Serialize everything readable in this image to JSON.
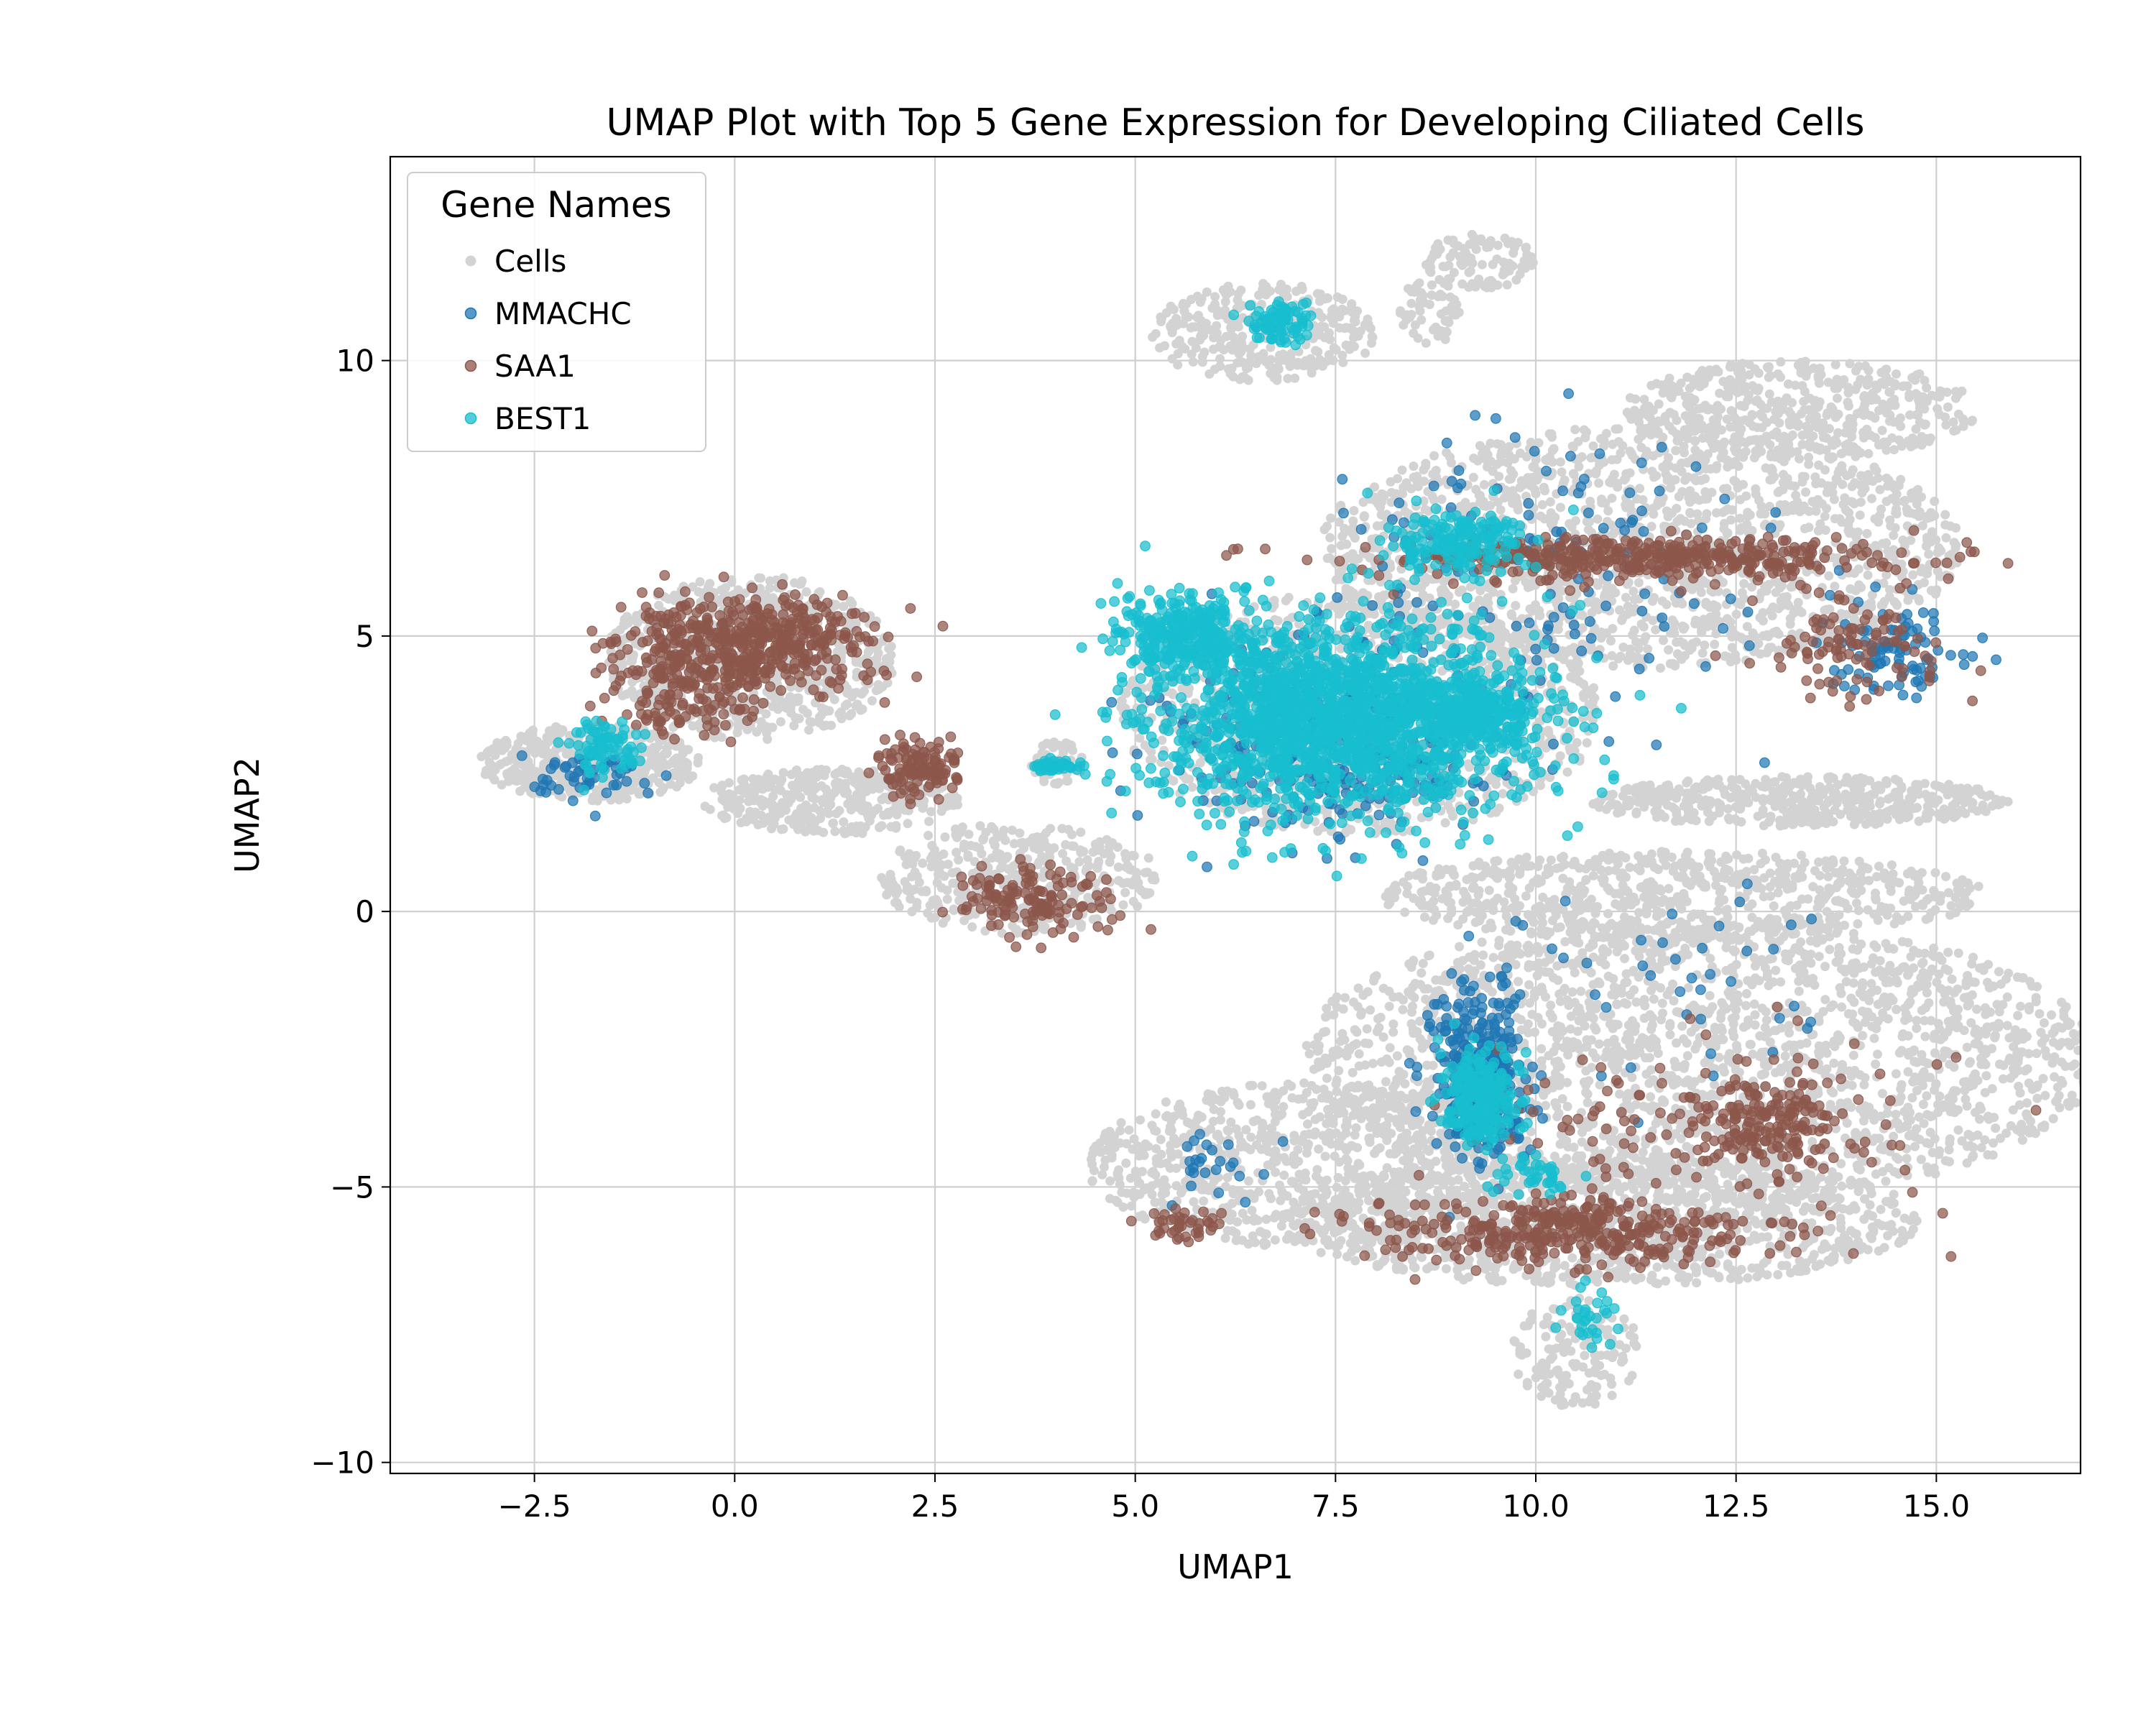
{
  "chart_data": {
    "type": "scatter",
    "title": "UMAP Plot with Top 5 Gene Expression for Developing Ciliated Cells",
    "xlabel": "UMAP1",
    "ylabel": "UMAP2",
    "xlim": [
      -4.3,
      16.8
    ],
    "ylim": [
      -10.2,
      13.7
    ],
    "xticks": [
      -2.5,
      0.0,
      2.5,
      5.0,
      7.5,
      10.0,
      12.5,
      15.0
    ],
    "xtick_labels": [
      "−2.5",
      "0.0",
      "2.5",
      "5.0",
      "7.5",
      "10.0",
      "12.5",
      "15.0"
    ],
    "yticks": [
      -10,
      -5,
      0,
      5,
      10
    ],
    "ytick_labels": [
      "−10",
      "−5",
      "0",
      "5",
      "10"
    ],
    "grid": true,
    "legend": {
      "title": "Gene Names",
      "position": "top-left"
    },
    "series": [
      {
        "name": "Cells",
        "color": "#d3d3d3",
        "regions": [
          {
            "cx": -1.8,
            "cy": 2.7,
            "rx": 1.4,
            "ry": 0.7,
            "n": 400
          },
          {
            "cx": 0.2,
            "cy": 4.6,
            "rx": 1.8,
            "ry": 1.5,
            "n": 700
          },
          {
            "cx": 1.2,
            "cy": 2.0,
            "rx": 1.6,
            "ry": 0.6,
            "n": 350
          },
          {
            "cx": 3.5,
            "cy": 0.6,
            "rx": 1.8,
            "ry": 1.0,
            "n": 400
          },
          {
            "cx": 4.0,
            "cy": 2.7,
            "rx": 0.35,
            "ry": 0.4,
            "n": 60
          },
          {
            "cx": 6.6,
            "cy": 10.5,
            "rx": 1.4,
            "ry": 0.9,
            "n": 300
          },
          {
            "cx": 9.3,
            "cy": 11.8,
            "rx": 0.7,
            "ry": 0.5,
            "n": 100
          },
          {
            "cx": 8.7,
            "cy": 10.9,
            "rx": 0.4,
            "ry": 0.6,
            "n": 60
          },
          {
            "cx": 11.3,
            "cy": 6.6,
            "rx": 4.0,
            "ry": 2.2,
            "n": 1700
          },
          {
            "cx": 13.3,
            "cy": 9.1,
            "rx": 2.2,
            "ry": 0.9,
            "n": 500
          },
          {
            "cx": 7.8,
            "cy": 3.6,
            "rx": 3.0,
            "ry": 2.2,
            "n": 1100
          },
          {
            "cx": 13.3,
            "cy": 2.0,
            "rx": 2.6,
            "ry": 0.45,
            "n": 500
          },
          {
            "cx": 11.8,
            "cy": 0.3,
            "rx": 3.8,
            "ry": 0.8,
            "n": 700
          },
          {
            "cx": 12.0,
            "cy": -2.7,
            "rx": 5.0,
            "ry": 2.6,
            "n": 2200
          },
          {
            "cx": 7.2,
            "cy": -4.6,
            "rx": 2.8,
            "ry": 1.5,
            "n": 800
          },
          {
            "cx": 10.8,
            "cy": -5.6,
            "rx": 4.0,
            "ry": 1.2,
            "n": 1100
          },
          {
            "cx": 10.5,
            "cy": -8.0,
            "rx": 0.8,
            "ry": 1.0,
            "n": 150
          }
        ]
      },
      {
        "name": "MMACHC",
        "color": "#1f77b4",
        "regions": [
          {
            "cx": -2.0,
            "cy": 2.4,
            "rx": 0.8,
            "ry": 0.5,
            "n": 50
          },
          {
            "cx": 9.3,
            "cy": -3.0,
            "rx": 0.6,
            "ry": 1.6,
            "n": 320
          },
          {
            "cx": 10.0,
            "cy": 6.3,
            "rx": 3.2,
            "ry": 2.6,
            "n": 140
          },
          {
            "cx": 14.5,
            "cy": 4.7,
            "rx": 0.9,
            "ry": 0.8,
            "n": 90
          },
          {
            "cx": 7.5,
            "cy": 3.0,
            "rx": 2.2,
            "ry": 1.6,
            "n": 320
          },
          {
            "cx": 6.0,
            "cy": -4.6,
            "rx": 0.8,
            "ry": 0.6,
            "n": 25
          },
          {
            "cx": 12.0,
            "cy": -1.5,
            "rx": 2.5,
            "ry": 2.0,
            "n": 40
          }
        ]
      },
      {
        "name": "SAA1",
        "color": "#8c564b",
        "regions": [
          {
            "cx": 0.1,
            "cy": 4.9,
            "rx": 1.6,
            "ry": 0.8,
            "n": 500
          },
          {
            "cx": -0.6,
            "cy": 3.9,
            "rx": 0.9,
            "ry": 0.7,
            "n": 120
          },
          {
            "cx": 2.3,
            "cy": 2.6,
            "rx": 0.5,
            "ry": 0.5,
            "n": 120
          },
          {
            "cx": 3.7,
            "cy": 0.2,
            "rx": 0.9,
            "ry": 0.6,
            "n": 140
          },
          {
            "cx": 11.3,
            "cy": 6.4,
            "rx": 3.4,
            "ry": 0.4,
            "n": 420
          },
          {
            "cx": 14.0,
            "cy": 4.8,
            "rx": 1.0,
            "ry": 0.9,
            "n": 100
          },
          {
            "cx": 12.8,
            "cy": -3.8,
            "rx": 0.9,
            "ry": 0.8,
            "n": 160
          },
          {
            "cx": 10.3,
            "cy": -5.8,
            "rx": 2.6,
            "ry": 0.6,
            "n": 380
          },
          {
            "cx": 5.6,
            "cy": -5.7,
            "rx": 0.6,
            "ry": 0.3,
            "n": 40
          },
          {
            "cx": 12.0,
            "cy": -4.0,
            "rx": 3.0,
            "ry": 1.6,
            "n": 120
          }
        ]
      },
      {
        "name": "BEST1",
        "color": "#17becf",
        "regions": [
          {
            "cx": 6.8,
            "cy": 10.7,
            "rx": 0.4,
            "ry": 0.4,
            "n": 90
          },
          {
            "cx": 7.5,
            "cy": 3.5,
            "rx": 2.3,
            "ry": 1.8,
            "n": 1800
          },
          {
            "cx": 5.6,
            "cy": 5.0,
            "rx": 0.9,
            "ry": 0.7,
            "n": 300
          },
          {
            "cx": 9.3,
            "cy": 3.6,
            "rx": 0.7,
            "ry": 0.6,
            "n": 260
          },
          {
            "cx": 9.0,
            "cy": 6.7,
            "rx": 0.9,
            "ry": 0.6,
            "n": 180
          },
          {
            "cx": -1.6,
            "cy": 3.0,
            "rx": 0.4,
            "ry": 0.5,
            "n": 80
          },
          {
            "cx": 4.0,
            "cy": 2.65,
            "rx": 0.3,
            "ry": 0.12,
            "n": 40
          },
          {
            "cx": 9.3,
            "cy": -3.4,
            "rx": 0.5,
            "ry": 0.8,
            "n": 260
          },
          {
            "cx": 10.7,
            "cy": -7.3,
            "rx": 0.4,
            "ry": 0.6,
            "n": 30
          },
          {
            "cx": 10.0,
            "cy": -4.8,
            "rx": 0.5,
            "ry": 0.3,
            "n": 40
          }
        ]
      }
    ]
  }
}
